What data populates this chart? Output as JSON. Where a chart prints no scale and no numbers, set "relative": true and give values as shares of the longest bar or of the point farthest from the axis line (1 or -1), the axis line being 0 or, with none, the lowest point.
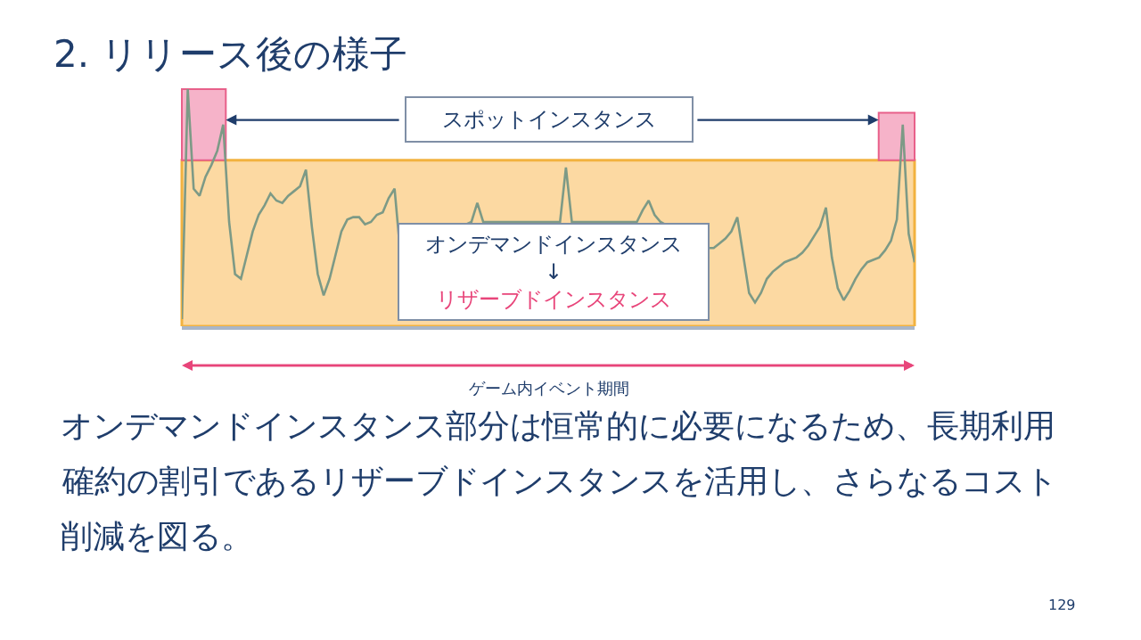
{
  "chart_data": {
    "type": "line",
    "title": "2. リリース後の様子",
    "relative": true,
    "xlabel": "ゲーム内イベント期間",
    "tick_labels": false,
    "grid": false,
    "marker": "none",
    "line_style": "solid",
    "categories": [
      null,
      null,
      null,
      null,
      null,
      null,
      null,
      null,
      null,
      null,
      null,
      null,
      null,
      null,
      null,
      null,
      null,
      null,
      null,
      null,
      null,
      null,
      null,
      null,
      null,
      null,
      null,
      null,
      null,
      null,
      null,
      null,
      null,
      null,
      null,
      null,
      null,
      null,
      null,
      null,
      null,
      null,
      null,
      null,
      null,
      null,
      null,
      null,
      null,
      null,
      null,
      null,
      null,
      null,
      null,
      null,
      null,
      null,
      null,
      null,
      null,
      null,
      null,
      null,
      null,
      null,
      null,
      null,
      null,
      null,
      null,
      null,
      null,
      null,
      null,
      null,
      null,
      null,
      null,
      null,
      null,
      null,
      null,
      null,
      null,
      null,
      null,
      null,
      null,
      null,
      null,
      null,
      null,
      null,
      null,
      null,
      null,
      null,
      null,
      null,
      null,
      null,
      null,
      null,
      null,
      null,
      null,
      null,
      null,
      null,
      null,
      null,
      null,
      null,
      null,
      null,
      null,
      null,
      null,
      null,
      null,
      null,
      null,
      null,
      null
    ],
    "series": [
      {
        "color": "#7d9a86",
        "values": [
          0.03,
          1.0,
          0.58,
          0.55,
          0.63,
          0.68,
          0.74,
          0.85,
          0.44,
          0.22,
          0.2,
          0.3,
          0.4,
          0.47,
          0.51,
          0.56,
          0.53,
          0.52,
          0.55,
          0.57,
          0.59,
          0.66,
          0.42,
          0.22,
          0.13,
          0.2,
          0.3,
          0.4,
          0.45,
          0.46,
          0.46,
          0.43,
          0.44,
          0.47,
          0.48,
          0.54,
          0.58,
          0.3,
          null,
          null,
          null,
          null,
          null,
          null,
          null,
          null,
          null,
          null,
          null,
          0.44,
          0.52,
          0.44,
          null,
          null,
          null,
          null,
          null,
          null,
          null,
          null,
          null,
          null,
          null,
          null,
          0.44,
          0.67,
          0.44,
          null,
          null,
          null,
          null,
          null,
          null,
          null,
          null,
          null,
          null,
          0.44,
          0.49,
          0.53,
          0.47,
          0.44,
          null,
          null,
          null,
          null,
          null,
          null,
          null,
          0.33,
          0.33,
          0.35,
          0.37,
          0.4,
          0.46,
          0.3,
          0.14,
          0.1,
          0.14,
          0.2,
          0.23,
          0.25,
          0.27,
          0.28,
          0.29,
          0.31,
          0.34,
          0.38,
          0.42,
          0.5,
          0.29,
          0.16,
          0.11,
          0.15,
          0.2,
          0.24,
          0.27,
          0.28,
          0.29,
          0.32,
          0.36,
          0.45,
          0.85,
          0.39,
          0.27
        ]
      }
    ],
    "bands": [
      {
        "axis": "y",
        "from": 0,
        "to": 0.7,
        "color": "#fcd9a2"
      }
    ],
    "annotations": [
      "スポットインスタンス",
      "オンデマンドインスタンス\n↓\nリザーブドインスタンス",
      "オンデマンドインスタンス部分は恒常的に必要になるため、長期利用",
      "確約の割引であるリザーブドインスタンスを活用し、さらなるコスト",
      "削減を図る。",
      "129"
    ]
  }
}
